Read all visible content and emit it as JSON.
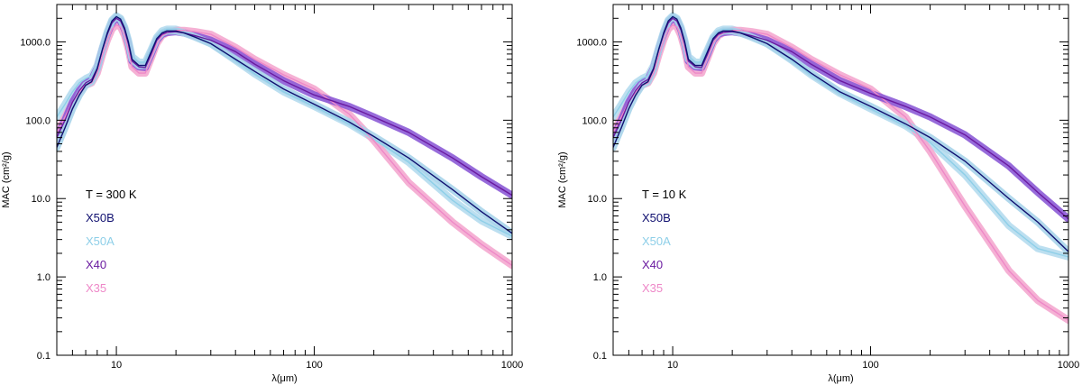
{
  "colors": {
    "X50B": {
      "line": "#101070",
      "band": "#a8d4ea"
    },
    "X50A": {
      "line": "#8ecfe8",
      "band": "#b5dcee"
    },
    "X40": {
      "line": "#6a1aa0",
      "band": "#8c5bd6"
    },
    "X35": {
      "line": "#ee88c8",
      "band": "#f4a9cf"
    }
  },
  "chart_data": [
    {
      "type": "line",
      "title": "",
      "annotation": "T = 300 K",
      "xlabel": "λ(μm)",
      "ylabel": "MAC (cm²/g)",
      "xscale": "log",
      "yscale": "log",
      "xlim": [
        5,
        1000
      ],
      "ylim": [
        0.1,
        3000
      ],
      "xticklabels": [
        "10",
        "100",
        "1000"
      ],
      "yticklabels": [
        "0.1",
        "1.0",
        "10.0",
        "100.0",
        "1000.0"
      ],
      "legend": [
        "X50B",
        "X50A",
        "X40",
        "X35"
      ],
      "legend_position": "middle-left",
      "series": [
        {
          "name": "X50B",
          "x": [
            5,
            5.5,
            6,
            6.5,
            7,
            7.5,
            8,
            8.5,
            9,
            9.5,
            10,
            10.5,
            11,
            11.5,
            12,
            13,
            14,
            15,
            16,
            17,
            18,
            20,
            22,
            25,
            30,
            40,
            50,
            70,
            100,
            150,
            200,
            300,
            500,
            700,
            1000
          ],
          "y": [
            45,
            80,
            140,
            210,
            280,
            310,
            450,
            800,
            1300,
            1850,
            2100,
            1950,
            1500,
            1000,
            600,
            500,
            500,
            750,
            1100,
            1300,
            1380,
            1380,
            1300,
            1150,
            950,
            600,
            420,
            250,
            160,
            95,
            62,
            33,
            13,
            6.8,
            3.6
          ]
        },
        {
          "name": "X50A",
          "x": [
            5,
            5.5,
            6,
            6.5,
            7,
            7.5,
            8,
            8.5,
            9,
            9.5,
            10,
            10.5,
            11,
            11.5,
            12,
            13,
            14,
            15,
            16,
            17,
            18,
            20,
            22,
            25,
            30,
            40,
            50,
            70,
            100,
            150,
            200,
            300,
            500,
            700,
            1000
          ],
          "y": [
            110,
            160,
            230,
            300,
            340,
            370,
            500,
            850,
            1350,
            1900,
            2150,
            2000,
            1550,
            1050,
            650,
            550,
            550,
            800,
            1150,
            1380,
            1450,
            1450,
            1350,
            1200,
            950,
            580,
            390,
            230,
            150,
            90,
            58,
            29,
            9.5,
            5.2,
            3.3
          ]
        },
        {
          "name": "X40",
          "x": [
            5,
            5.5,
            6,
            6.5,
            7,
            7.5,
            8,
            8.5,
            9,
            9.5,
            10,
            10.5,
            11,
            11.5,
            12,
            13,
            14,
            15,
            16,
            17,
            18,
            20,
            22,
            25,
            30,
            40,
            50,
            70,
            100,
            150,
            200,
            300,
            500,
            700,
            1000
          ],
          "y": [
            60,
            100,
            170,
            240,
            300,
            330,
            460,
            800,
            1250,
            1750,
            2000,
            1850,
            1420,
            950,
            570,
            480,
            470,
            700,
            1050,
            1250,
            1320,
            1350,
            1300,
            1200,
            1050,
            750,
            520,
            320,
            210,
            150,
            110,
            70,
            33,
            19,
            11
          ]
        },
        {
          "name": "X35",
          "x": [
            5,
            5.5,
            6,
            6.5,
            7,
            7.5,
            8,
            8.5,
            9,
            9.5,
            10,
            10.5,
            11,
            11.5,
            12,
            13,
            14,
            15,
            16,
            17,
            18,
            20,
            22,
            25,
            30,
            40,
            50,
            70,
            100,
            150,
            200,
            300,
            500,
            700,
            1000
          ],
          "y": [
            70,
            110,
            170,
            230,
            280,
            300,
            400,
            680,
            1050,
            1450,
            1650,
            1550,
            1200,
            800,
            480,
            400,
            400,
            620,
            950,
            1200,
            1300,
            1400,
            1400,
            1350,
            1250,
            850,
            600,
            380,
            250,
            120,
            55,
            16,
            5,
            2.6,
            1.4
          ]
        }
      ]
    },
    {
      "type": "line",
      "title": "",
      "annotation": "T = 10 K",
      "xlabel": "λ(μm)",
      "ylabel": "MAC (cm²/g)",
      "xscale": "log",
      "yscale": "log",
      "xlim": [
        5,
        1000
      ],
      "ylim": [
        0.1,
        3000
      ],
      "xticklabels": [
        "10",
        "100",
        "1000"
      ],
      "yticklabels": [
        "0.1",
        "1.0",
        "10.0",
        "100.0",
        "1000.0"
      ],
      "legend": [
        "X50B",
        "X50A",
        "X40",
        "X35"
      ],
      "legend_position": "middle-left",
      "series": [
        {
          "name": "X50B",
          "x": [
            5,
            5.5,
            6,
            6.5,
            7,
            7.5,
            8,
            8.5,
            9,
            9.5,
            10,
            10.5,
            11,
            11.5,
            12,
            13,
            14,
            15,
            16,
            17,
            18,
            20,
            22,
            25,
            30,
            40,
            50,
            70,
            100,
            150,
            200,
            300,
            500,
            700,
            1000
          ],
          "y": [
            45,
            80,
            140,
            210,
            280,
            310,
            450,
            800,
            1300,
            1850,
            2100,
            1950,
            1500,
            1000,
            600,
            500,
            500,
            750,
            1100,
            1300,
            1380,
            1380,
            1300,
            1150,
            950,
            600,
            400,
            230,
            150,
            90,
            60,
            30,
            10,
            5,
            2.1
          ]
        },
        {
          "name": "X50A",
          "x": [
            5,
            5.5,
            6,
            6.5,
            7,
            7.5,
            8,
            8.5,
            9,
            9.5,
            10,
            10.5,
            11,
            11.5,
            12,
            13,
            14,
            15,
            16,
            17,
            18,
            20,
            22,
            25,
            30,
            40,
            50,
            70,
            100,
            150,
            200,
            300,
            500,
            700,
            1000
          ],
          "y": [
            110,
            160,
            230,
            300,
            340,
            370,
            500,
            850,
            1350,
            1900,
            2150,
            2000,
            1550,
            1050,
            650,
            550,
            550,
            800,
            1150,
            1380,
            1450,
            1450,
            1350,
            1200,
            950,
            580,
            380,
            220,
            140,
            85,
            52,
            20,
            4.5,
            2.3,
            1.8
          ]
        },
        {
          "name": "X40",
          "x": [
            5,
            5.5,
            6,
            6.5,
            7,
            7.5,
            8,
            8.5,
            9,
            9.5,
            10,
            10.5,
            11,
            11.5,
            12,
            13,
            14,
            15,
            16,
            17,
            18,
            20,
            22,
            25,
            30,
            40,
            50,
            70,
            100,
            150,
            200,
            300,
            500,
            700,
            1000
          ],
          "y": [
            60,
            100,
            170,
            240,
            300,
            330,
            460,
            800,
            1250,
            1750,
            2000,
            1850,
            1420,
            950,
            570,
            480,
            470,
            700,
            1050,
            1250,
            1320,
            1350,
            1300,
            1200,
            1050,
            750,
            520,
            320,
            220,
            150,
            110,
            65,
            26,
            12,
            5.5
          ]
        },
        {
          "name": "X35",
          "x": [
            5,
            5.5,
            6,
            6.5,
            7,
            7.5,
            8,
            8.5,
            9,
            9.5,
            10,
            10.5,
            11,
            11.5,
            12,
            13,
            14,
            15,
            16,
            17,
            18,
            20,
            22,
            25,
            30,
            40,
            50,
            70,
            100,
            150,
            200,
            300,
            500,
            700,
            1000
          ],
          "y": [
            70,
            110,
            170,
            230,
            280,
            300,
            400,
            680,
            1050,
            1450,
            1650,
            1550,
            1200,
            800,
            480,
            400,
            400,
            620,
            950,
            1200,
            1300,
            1400,
            1400,
            1350,
            1250,
            850,
            600,
            380,
            250,
            110,
            40,
            8,
            1.2,
            0.5,
            0.28
          ]
        }
      ]
    }
  ]
}
